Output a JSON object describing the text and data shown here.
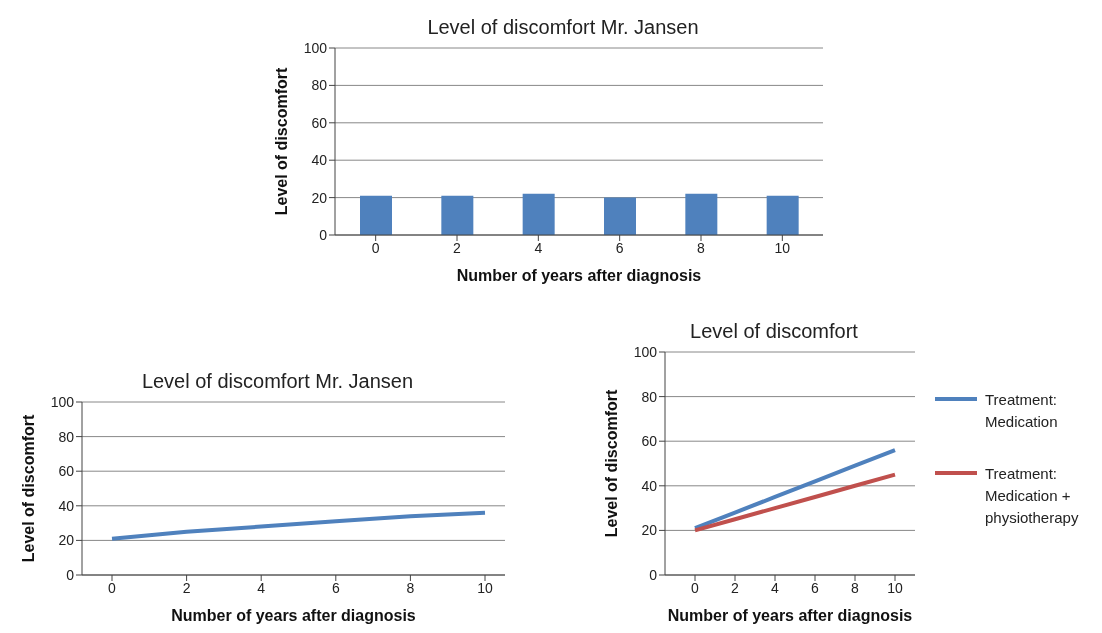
{
  "chart_data": [
    {
      "type": "bar",
      "title": "Level of discomfort Mr. Jansen",
      "xlabel": "Number of years after diagnosis",
      "ylabel": "Level of discomfort",
      "categories": [
        "0",
        "2",
        "4",
        "6",
        "8",
        "10"
      ],
      "values": [
        21,
        21,
        22,
        20,
        22,
        21
      ],
      "color": "#4f81bd",
      "ylim": [
        0,
        100
      ],
      "yticks": [
        0,
        20,
        40,
        60,
        80,
        100
      ],
      "grid": "y"
    },
    {
      "type": "line",
      "title": "Level of discomfort Mr. Jansen",
      "xlabel": "Number of years after diagnosis",
      "ylabel": "Level of discomfort",
      "categories": [
        "0",
        "2",
        "4",
        "6",
        "8",
        "10"
      ],
      "values": [
        21,
        25,
        28,
        31,
        34,
        36
      ],
      "color": "#4f81bd",
      "ylim": [
        0,
        100
      ],
      "yticks": [
        0,
        20,
        40,
        60,
        80,
        100
      ],
      "grid": "y",
      "marker": "none"
    },
    {
      "type": "line",
      "title": "Level of discomfort",
      "xlabel": "Number of years after diagnosis",
      "ylabel": "Level of discomfort",
      "categories": [
        "0",
        "2",
        "4",
        "6",
        "8",
        "10"
      ],
      "series": [
        {
          "name": "Treatment: Medication",
          "color": "#4f81bd",
          "values": [
            21,
            28,
            35,
            42,
            49,
            56
          ]
        },
        {
          "name": "Treatment: Medication + physiotherapy",
          "color": "#c0504d",
          "values": [
            20,
            25,
            30,
            35,
            40,
            45
          ]
        }
      ],
      "ylim": [
        0,
        100
      ],
      "yticks": [
        0,
        20,
        40,
        60,
        80,
        100
      ],
      "grid": "y",
      "legend": "right",
      "marker": "none"
    }
  ]
}
